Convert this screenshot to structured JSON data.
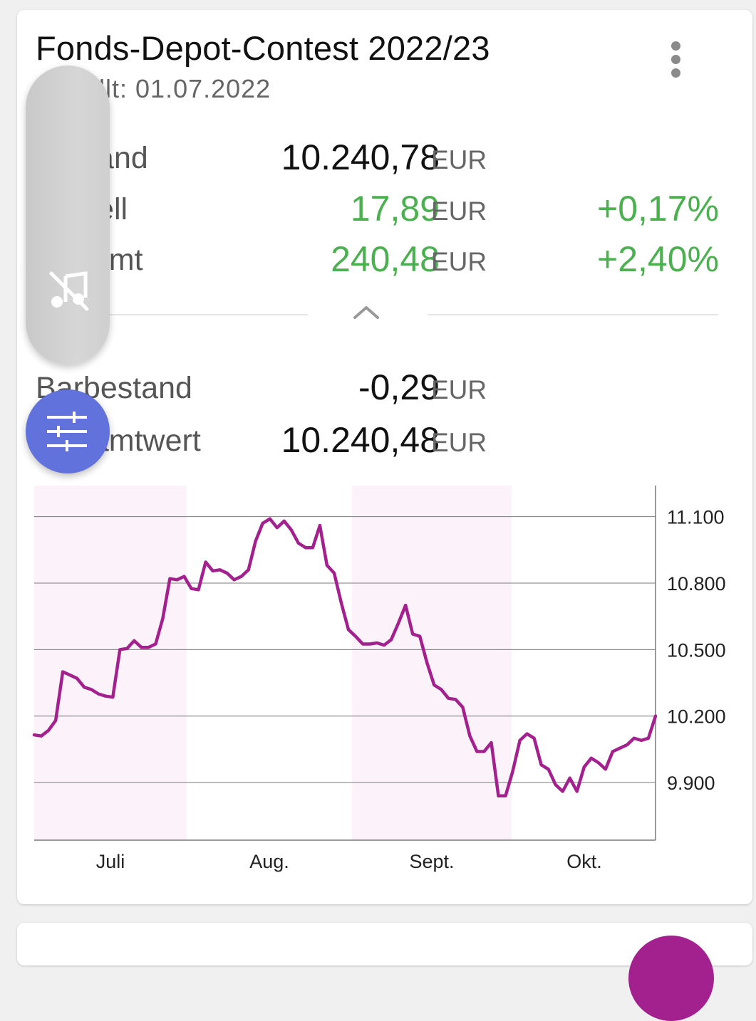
{
  "header": {
    "title": "Fonds-Depot-Contest 2022/23",
    "subtitle": "Erstellt: 01.07.2022"
  },
  "summary": {
    "bestand": {
      "label": "Bestand",
      "value": "10.240,78",
      "unit": "EUR"
    },
    "aktuell": {
      "label": "Aktuell",
      "value": "17,89",
      "unit": "EUR",
      "pct": "+0,17%"
    },
    "gesamt": {
      "label": "Gesamt",
      "value": "240,48",
      "unit": "EUR",
      "pct": "+2,40%"
    },
    "barbestand": {
      "label": "Barbestand",
      "value": "-0,29",
      "unit": "EUR"
    },
    "gesamtwert": {
      "label": "Gesamtwert",
      "value": "10.240,48",
      "unit": "EUR"
    }
  },
  "icons": {
    "menu": "more-vert-icon",
    "collapse": "chevron-up-icon",
    "music_off": "music-off-icon",
    "filter": "tune-sliders-icon"
  },
  "colors": {
    "positive": "#4caf50",
    "line": "#a3208f",
    "fab": "#6272dc",
    "month_shade": "#fbf3f9"
  },
  "chart_data": {
    "type": "line",
    "x_tick_labels": [
      "Juli",
      "Aug.",
      "Sept.",
      "Okt."
    ],
    "y_ticks": [
      9900,
      10200,
      10500,
      10800,
      11100
    ],
    "y_tick_labels": [
      "9.900",
      "10.200",
      "10.500",
      "10.800",
      "11.100"
    ],
    "ylim": [
      9640,
      11240
    ],
    "series": [
      {
        "values": [
          10115,
          10110,
          10135,
          10180,
          10400,
          10385,
          10370,
          10330,
          10320,
          10300,
          10290,
          10285,
          10500,
          10505,
          10540,
          10510,
          10510,
          10525,
          10640,
          10820,
          10815,
          10830,
          10775,
          10770,
          10895,
          10855,
          10860,
          10845,
          10815,
          10830,
          10860,
          10990,
          11070,
          11090,
          11050,
          11080,
          11040,
          10980,
          10960,
          10960,
          11060,
          10880,
          10845,
          10710,
          10590,
          10560,
          10525,
          10525,
          10530,
          10520,
          10545,
          10620,
          10700,
          10570,
          10560,
          10440,
          10340,
          10320,
          10280,
          10275,
          10240,
          10110,
          10040,
          10040,
          10080,
          9840,
          9840,
          9950,
          10090,
          10120,
          10100,
          9980,
          9960,
          9890,
          9860,
          9920,
          9860,
          9970,
          10010,
          9990,
          9960,
          10040,
          10055,
          10070,
          10100,
          10090,
          10100,
          10200
        ]
      }
    ]
  }
}
